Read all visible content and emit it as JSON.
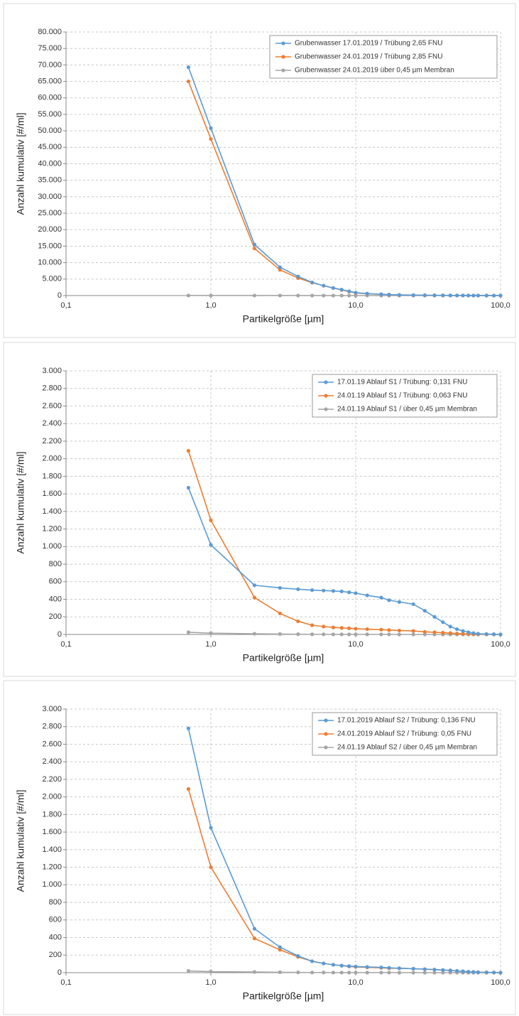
{
  "chart_data": [
    {
      "type": "line",
      "x_label": "Partikelgröße [µm]",
      "y_label": "Anzahl kumulativ [#/ml]",
      "log_x": true,
      "grid": true,
      "legend": "top-right",
      "x": [
        0.7,
        1,
        2,
        3,
        4,
        5,
        6,
        7,
        8,
        9,
        10,
        12,
        15,
        17,
        20,
        25,
        30,
        35,
        40,
        45,
        50,
        55,
        60,
        65,
        70,
        80,
        90,
        100
      ],
      "xlim": [
        0.1,
        100
      ],
      "xticks": [
        {
          "value": 0.1,
          "label": "0,1"
        },
        {
          "value": 1,
          "label": "1,0"
        },
        {
          "value": 10,
          "label": "10,0"
        },
        {
          "value": 100,
          "label": "100,0"
        }
      ],
      "ylim": [
        0,
        80000
      ],
      "yticks": [
        0,
        {
          "value": 5000,
          "label": "5.000"
        },
        {
          "value": 10000,
          "label": "10.000"
        },
        {
          "value": 15000,
          "label": "15.000"
        },
        {
          "value": 20000,
          "label": "20.000"
        },
        {
          "value": 25000,
          "label": "25.000"
        },
        {
          "value": 30000,
          "label": "30.000"
        },
        {
          "value": 35000,
          "label": "35.000"
        },
        {
          "value": 40000,
          "label": "40.000"
        },
        {
          "value": 45000,
          "label": "45.000"
        },
        {
          "value": 50000,
          "label": "50.000"
        },
        {
          "value": 55000,
          "label": "55.000"
        },
        {
          "value": 60000,
          "label": "60.000"
        },
        {
          "value": 65000,
          "label": "65.000"
        },
        {
          "value": 70000,
          "label": "70.000"
        },
        {
          "value": 75000,
          "label": "75.000"
        },
        {
          "value": 80000,
          "label": "80.000"
        }
      ],
      "series": [
        {
          "name": "Grubenwasser 17.01.2019 / Trübung 2,65 FNU",
          "color": "#5b9bd5",
          "values": [
            69300,
            50800,
            15500,
            8600,
            5800,
            4000,
            3000,
            2300,
            1800,
            1300,
            900,
            600,
            400,
            300,
            200,
            150,
            100,
            80,
            60,
            50,
            40,
            30,
            20,
            15,
            10,
            5,
            3,
            0
          ]
        },
        {
          "name": "Grubenwasser 24.01.2019 / Trübung 2,85 FNU",
          "color": "#ed7d31",
          "values": [
            65000,
            47500,
            14300,
            7800,
            5300,
            3900,
            3000,
            2300,
            1700,
            1200,
            800,
            550,
            380,
            280,
            190,
            140,
            100,
            75,
            55,
            45,
            35,
            25,
            18,
            12,
            8,
            4,
            2,
            0
          ]
        },
        {
          "name": "Grubenwasser 24.01.2019 über 0,45 µm Membran",
          "color": "#a5a5a5",
          "values": [
            30,
            20,
            10,
            8,
            5,
            4,
            3,
            2,
            2,
            1,
            1,
            1,
            1,
            1,
            1,
            0,
            0,
            0,
            0,
            0,
            0,
            0,
            0,
            0,
            0,
            0,
            0,
            0
          ]
        }
      ]
    },
    {
      "type": "line",
      "x_label": "Partikelgröße [µm]",
      "y_label": "Anzahl kumulativ [#/ml]",
      "log_x": true,
      "grid": true,
      "legend": "top-right",
      "x": [
        0.7,
        1,
        2,
        3,
        4,
        5,
        6,
        7,
        8,
        9,
        10,
        12,
        15,
        17,
        20,
        25,
        30,
        35,
        40,
        45,
        50,
        55,
        60,
        65,
        70,
        80,
        90,
        100
      ],
      "xlim": [
        0.1,
        100
      ],
      "xticks": [
        {
          "value": 0.1,
          "label": "0,1"
        },
        {
          "value": 1,
          "label": "1,0"
        },
        {
          "value": 10,
          "label": "10,0"
        },
        {
          "value": 100,
          "label": "100,0"
        }
      ],
      "ylim": [
        0,
        3000
      ],
      "yticks": [
        0,
        200,
        400,
        600,
        800,
        {
          "value": 1000,
          "label": "1.000"
        },
        {
          "value": 1200,
          "label": "1.200"
        },
        {
          "value": 1400,
          "label": "1.400"
        },
        {
          "value": 1600,
          "label": "1.600"
        },
        {
          "value": 1800,
          "label": "1.800"
        },
        {
          "value": 2000,
          "label": "2.000"
        },
        {
          "value": 2200,
          "label": "2.200"
        },
        {
          "value": 2400,
          "label": "2.400"
        },
        {
          "value": 2600,
          "label": "2.600"
        },
        {
          "value": 2800,
          "label": "2.800"
        },
        {
          "value": 3000,
          "label": "3.000"
        }
      ],
      "series": [
        {
          "name": "17.01.19 Ablauf S1 / Trübung: 0,131 FNU",
          "color": "#5b9bd5",
          "values": [
            1670,
            1020,
            560,
            530,
            515,
            505,
            500,
            495,
            490,
            480,
            470,
            445,
            420,
            390,
            370,
            345,
            270,
            200,
            140,
            90,
            60,
            40,
            25,
            15,
            8,
            5,
            3,
            0
          ]
        },
        {
          "name": "24.01.19 Ablauf S1 / Trübung: 0,063 FNU",
          "color": "#ed7d31",
          "values": [
            2090,
            1300,
            420,
            240,
            150,
            105,
            90,
            80,
            75,
            70,
            65,
            60,
            55,
            50,
            45,
            40,
            30,
            25,
            20,
            15,
            10,
            8,
            5,
            4,
            3,
            2,
            1,
            0
          ]
        },
        {
          "name": "24.01.19 Ablauf S1 / über 0,45 µm Membran",
          "color": "#a5a5a5",
          "values": [
            25,
            15,
            8,
            5,
            3,
            2,
            2,
            1,
            1,
            1,
            1,
            1,
            1,
            1,
            0,
            0,
            0,
            0,
            0,
            0,
            0,
            0,
            0,
            0,
            0,
            0,
            0,
            0
          ]
        }
      ]
    },
    {
      "type": "line",
      "x_label": "Partikelgröße [µm]",
      "y_label": "Anzahl kumulativ [#/ml]",
      "log_x": true,
      "grid": true,
      "legend": "top-right",
      "x": [
        0.7,
        1,
        2,
        3,
        4,
        5,
        6,
        7,
        8,
        9,
        10,
        12,
        15,
        17,
        20,
        25,
        30,
        35,
        40,
        45,
        50,
        55,
        60,
        65,
        70,
        80,
        90,
        100
      ],
      "xlim": [
        0.1,
        100
      ],
      "xticks": [
        {
          "value": 0.1,
          "label": "0,1"
        },
        {
          "value": 1,
          "label": "1,0"
        },
        {
          "value": 10,
          "label": "10,0"
        },
        {
          "value": 100,
          "label": "100,0"
        }
      ],
      "ylim": [
        0,
        3000
      ],
      "yticks": [
        0,
        200,
        400,
        600,
        800,
        {
          "value": 1000,
          "label": "1.000"
        },
        {
          "value": 1200,
          "label": "1.200"
        },
        {
          "value": 1400,
          "label": "1.400"
        },
        {
          "value": 1600,
          "label": "1.600"
        },
        {
          "value": 1800,
          "label": "1.800"
        },
        {
          "value": 2000,
          "label": "2.000"
        },
        {
          "value": 2200,
          "label": "2.200"
        },
        {
          "value": 2400,
          "label": "2.400"
        },
        {
          "value": 2600,
          "label": "2.600"
        },
        {
          "value": 2800,
          "label": "2.800"
        },
        {
          "value": 3000,
          "label": "3.000"
        }
      ],
      "series": [
        {
          "name": "17.01.2019 Ablauf S2 / Trübung: 0,136 FNU",
          "color": "#5b9bd5",
          "values": [
            2780,
            1650,
            500,
            290,
            190,
            130,
            105,
            90,
            80,
            75,
            70,
            65,
            60,
            55,
            50,
            45,
            40,
            35,
            30,
            25,
            20,
            15,
            10,
            8,
            5,
            3,
            2,
            0
          ]
        },
        {
          "name": "24.01.2019 Ablauf S2 / Trübung: 0,05 FNU",
          "color": "#ed7d31",
          "values": [
            2090,
            1200,
            390,
            260,
            180,
            130,
            105,
            90,
            80,
            70,
            65,
            60,
            55,
            50,
            50,
            45,
            40,
            35,
            30,
            25,
            20,
            15,
            10,
            8,
            5,
            3,
            2,
            0
          ]
        },
        {
          "name": "24.01.19 Ablauf S2 / über 0,45 µm Membran",
          "color": "#a5a5a5",
          "values": [
            20,
            12,
            8,
            5,
            3,
            2,
            2,
            1,
            1,
            1,
            1,
            1,
            1,
            1,
            0,
            0,
            0,
            0,
            0,
            0,
            0,
            0,
            0,
            0,
            0,
            0,
            0,
            0
          ]
        }
      ]
    }
  ]
}
